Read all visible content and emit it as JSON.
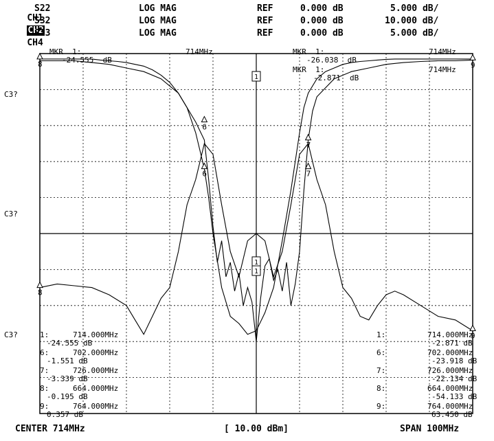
{
  "header": {
    "rows": [
      {
        "ch": "CH1",
        "highlight": false,
        "param": "S22",
        "fmt": "LOG MAG",
        "ref_label": "REF",
        "ref_value": "0.000 dB",
        "scale": "5.000 dB/"
      },
      {
        "ch": "CH2",
        "highlight": true,
        "param": "S32",
        "fmt": "LOG MAG",
        "ref_label": "REF",
        "ref_value": "0.000 dB",
        "scale": "10.000 dB/"
      },
      {
        "ch": "CH4",
        "highlight": false,
        "param": "S33",
        "fmt": "LOG MAG",
        "ref_label": "REF",
        "ref_value": "0.000 dB",
        "scale": "5.000 dB/"
      }
    ]
  },
  "readouts": {
    "left_top": {
      "mkr": "MKR  1:",
      "freq": "714MHz",
      "value": "-24.555  dB"
    },
    "right_top_1": {
      "mkr": "MKR  1:",
      "freq": "714MHz",
      "value": "-26.038  dB"
    },
    "right_top_2": {
      "mkr": "MKR  1:",
      "freq": "714MHz",
      "value": "-2.871  dB"
    },
    "side_label": "C3?"
  },
  "marker_table_left": [
    {
      "id": "1:",
      "freq": "714.000MHz",
      "value": "-24.555 dB"
    },
    {
      "id": "6:",
      "freq": "702.000MHz",
      "value": "-1.551 dB"
    },
    {
      "id": "7:",
      "freq": "726.000MHz",
      "value": "-3.339 dB"
    },
    {
      "id": "8:",
      "freq": "664.000MHz",
      "value": "-0.195 dB"
    },
    {
      "id": "9:",
      "freq": "764.000MHz",
      "value": "0.357 dB"
    }
  ],
  "marker_table_right": [
    {
      "id": "1:",
      "freq": "714.000MHz",
      "value": "-2.871 dB"
    },
    {
      "id": "6:",
      "freq": "702.000MHz",
      "value": "-23.918 dB"
    },
    {
      "id": "7:",
      "freq": "726.000MHz",
      "value": "-22.134 dB"
    },
    {
      "id": "8:",
      "freq": "664.000MHz",
      "value": "-54.133 dB"
    },
    {
      "id": "9:",
      "freq": "764.000MHz",
      "value": "63.450 dB"
    }
  ],
  "footer": {
    "center": "CENTER 714MHz",
    "power": "[ 10.00 dBm]",
    "span": "SPAN 100MHz"
  },
  "chart_data": {
    "type": "line",
    "title": "",
    "xlabel": "",
    "ylabel": "",
    "xlim": [
      664,
      764
    ],
    "ylim": [
      0,
      10
    ],
    "grid": true,
    "grid_divisions": {
      "x": 10,
      "y": 10
    },
    "series": [
      {
        "name": "",
        "color": "#000000",
        "x": [
          664,
          666,
          668,
          670,
          672,
          674,
          676,
          678,
          680,
          682,
          684,
          686,
          688,
          690,
          692,
          694,
          696,
          698,
          700,
          702,
          703,
          704,
          706,
          708,
          710,
          712,
          714,
          716,
          718,
          720,
          722,
          724,
          725,
          726,
          728,
          730,
          732,
          734,
          736,
          738,
          740,
          742,
          744,
          746,
          748,
          750,
          752,
          754,
          756,
          758,
          760,
          762,
          764
        ],
        "y": [
          9.85,
          9.85,
          9.85,
          9.85,
          9.85,
          9.85,
          9.85,
          9.82,
          9.8,
          9.78,
          9.75,
          9.7,
          9.65,
          9.55,
          9.4,
          9.2,
          8.9,
          8.5,
          7.8,
          6.8,
          6.0,
          5.0,
          3.5,
          2.7,
          2.5,
          2.2,
          2.3,
          2.8,
          3.5,
          4.8,
          6.2,
          7.8,
          8.5,
          8.9,
          9.3,
          9.5,
          9.6,
          9.7,
          9.75,
          9.78,
          9.8,
          9.82,
          9.84,
          9.85,
          9.85,
          9.85,
          9.85,
          9.85,
          9.85,
          9.85,
          9.85,
          9.85,
          9.85
        ]
      },
      {
        "name": "",
        "color": "#000000",
        "x": [
          664,
          668,
          672,
          676,
          680,
          684,
          686,
          688,
          690,
          692,
          694,
          696,
          698,
          700,
          702,
          704,
          706,
          708,
          710,
          712,
          714,
          716,
          718,
          720,
          722,
          724,
          726,
          728,
          730,
          732,
          734,
          736,
          738,
          740,
          742,
          744,
          746,
          748,
          752,
          756,
          760,
          764
        ],
        "y": [
          3.5,
          3.6,
          3.55,
          3.5,
          3.3,
          3.0,
          2.6,
          2.2,
          2.7,
          3.2,
          3.5,
          4.5,
          5.8,
          6.5,
          7.5,
          7.2,
          5.8,
          4.5,
          3.8,
          4.8,
          5.0,
          4.8,
          3.8,
          4.5,
          5.8,
          7.2,
          7.5,
          6.5,
          5.8,
          4.5,
          3.5,
          3.2,
          2.7,
          2.6,
          3.0,
          3.3,
          3.4,
          3.3,
          3.0,
          2.7,
          2.6,
          2.3
        ]
      },
      {
        "name": "",
        "color": "#000000",
        "x": [
          664,
          668,
          672,
          676,
          680,
          684,
          688,
          692,
          696,
          700,
          702,
          703,
          704,
          705,
          706,
          707,
          708,
          709,
          710,
          711,
          712,
          713,
          714,
          715,
          716,
          717,
          718,
          719,
          720,
          721,
          722,
          723,
          724,
          725,
          726,
          727,
          728,
          732,
          736,
          740,
          744,
          748,
          752,
          756,
          760,
          764
        ],
        "y": [
          9.8,
          9.8,
          9.8,
          9.75,
          9.7,
          9.6,
          9.5,
          9.3,
          8.9,
          8.1,
          7.6,
          6.5,
          5.2,
          4.2,
          4.8,
          3.8,
          4.2,
          3.4,
          3.9,
          3.0,
          3.5,
          3.1,
          2.0,
          3.2,
          4.1,
          4.3,
          3.7,
          4.0,
          3.4,
          4.2,
          3.0,
          3.6,
          4.5,
          6.2,
          7.6,
          8.4,
          8.8,
          9.3,
          9.5,
          9.6,
          9.7,
          9.75,
          9.78,
          9.8,
          9.8,
          9.82
        ]
      }
    ]
  }
}
